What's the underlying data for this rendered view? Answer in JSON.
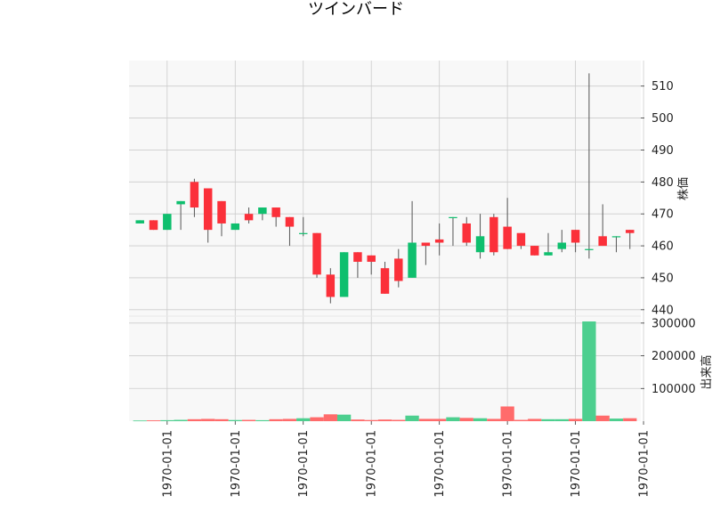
{
  "chart_data": {
    "type": "candlestick",
    "title": "ツインバード",
    "colors": {
      "up": "#0fbf6e",
      "down": "#fb303a",
      "volume_up": "#4dcf8f",
      "volume_down": "#ff6b6b",
      "wick": "#555555",
      "panel_bg": "#f8f8f8",
      "grid": "#cccccc"
    },
    "price_panel": {
      "ylabel": "株価",
      "ylim": [
        438,
        518
      ],
      "yticks": [
        440,
        450,
        460,
        470,
        480,
        490,
        500,
        510
      ]
    },
    "volume_panel": {
      "ylabel": "出来高",
      "ylim": [
        0,
        305000
      ],
      "yticks": [
        100000,
        200000,
        300000
      ],
      "ytick_labels": [
        "100000",
        "200000",
        "300000"
      ]
    },
    "x_tick_labels": [
      "1970-01-01",
      "1970-01-01",
      "1970-01-01",
      "1970-01-01",
      "1970-01-01",
      "1970-01-01",
      "1970-01-01",
      "1970-01-01"
    ],
    "x_tick_indices": [
      2,
      7,
      12,
      17,
      22,
      27,
      32,
      37
    ],
    "candles": [
      {
        "o": 467,
        "h": 468,
        "l": 467,
        "c": 468,
        "v": 2000
      },
      {
        "o": 468,
        "h": 468,
        "l": 465,
        "c": 465,
        "v": 2500
      },
      {
        "o": 465,
        "h": 470,
        "l": 465,
        "c": 470,
        "v": 3000
      },
      {
        "o": 473,
        "h": 474,
        "l": 465,
        "c": 474,
        "v": 4000
      },
      {
        "o": 480,
        "h": 481,
        "l": 469,
        "c": 472,
        "v": 6000
      },
      {
        "o": 478,
        "h": 478,
        "l": 461,
        "c": 465,
        "v": 7000
      },
      {
        "o": 474,
        "h": 474,
        "l": 463,
        "c": 467,
        "v": 6000
      },
      {
        "o": 465,
        "h": 467,
        "l": 465,
        "c": 467,
        "v": 3500
      },
      {
        "o": 470,
        "h": 472,
        "l": 467,
        "c": 468,
        "v": 4000
      },
      {
        "o": 470,
        "h": 472,
        "l": 468,
        "c": 472,
        "v": 3000
      },
      {
        "o": 472,
        "h": 472,
        "l": 466,
        "c": 469,
        "v": 6000
      },
      {
        "o": 469,
        "h": 469,
        "l": 460,
        "c": 466,
        "v": 7000
      },
      {
        "o": 464,
        "h": 469,
        "l": 463,
        "c": 464,
        "v": 9000
      },
      {
        "o": 464,
        "h": 464,
        "l": 450,
        "c": 451,
        "v": 12000
      },
      {
        "o": 451,
        "h": 453,
        "l": 442,
        "c": 444,
        "v": 21000
      },
      {
        "o": 444,
        "h": 458,
        "l": 444,
        "c": 458,
        "v": 20000
      },
      {
        "o": 458,
        "h": 458,
        "l": 450,
        "c": 455,
        "v": 5000
      },
      {
        "o": 457,
        "h": 457,
        "l": 451,
        "c": 455,
        "v": 3500
      },
      {
        "o": 453,
        "h": 455,
        "l": 445,
        "c": 445,
        "v": 5000
      },
      {
        "o": 456,
        "h": 459,
        "l": 447,
        "c": 449,
        "v": 4000
      },
      {
        "o": 450,
        "h": 474,
        "l": 450,
        "c": 461,
        "v": 17000
      },
      {
        "o": 461,
        "h": 461,
        "l": 454,
        "c": 460,
        "v": 7000
      },
      {
        "o": 462,
        "h": 467,
        "l": 457,
        "c": 461,
        "v": 7000
      },
      {
        "o": 469,
        "h": 469,
        "l": 460,
        "c": 469,
        "v": 12000
      },
      {
        "o": 467,
        "h": 469,
        "l": 460,
        "c": 461,
        "v": 10000
      },
      {
        "o": 458,
        "h": 470,
        "l": 456,
        "c": 463,
        "v": 9000
      },
      {
        "o": 469,
        "h": 470,
        "l": 457,
        "c": 458,
        "v": 7000
      },
      {
        "o": 466,
        "h": 475,
        "l": 459,
        "c": 459,
        "v": 45000
      },
      {
        "o": 464,
        "h": 464,
        "l": 459,
        "c": 460,
        "v": 4000
      },
      {
        "o": 460,
        "h": 460,
        "l": 457,
        "c": 457,
        "v": 7000
      },
      {
        "o": 457,
        "h": 464,
        "l": 457,
        "c": 458,
        "v": 6000
      },
      {
        "o": 459,
        "h": 465,
        "l": 458,
        "c": 461,
        "v": 6000
      },
      {
        "o": 465,
        "h": 465,
        "l": 458,
        "c": 461,
        "v": 7000
      },
      {
        "o": 459,
        "h": 514,
        "l": 456,
        "c": 459,
        "v": 305000
      },
      {
        "o": 463,
        "h": 473,
        "l": 460,
        "c": 460,
        "v": 17000
      },
      {
        "o": 463,
        "h": 463,
        "l": 458,
        "c": 463,
        "v": 8000
      },
      {
        "o": 465,
        "h": 465,
        "l": 459,
        "c": 464,
        "v": 9000
      }
    ]
  }
}
